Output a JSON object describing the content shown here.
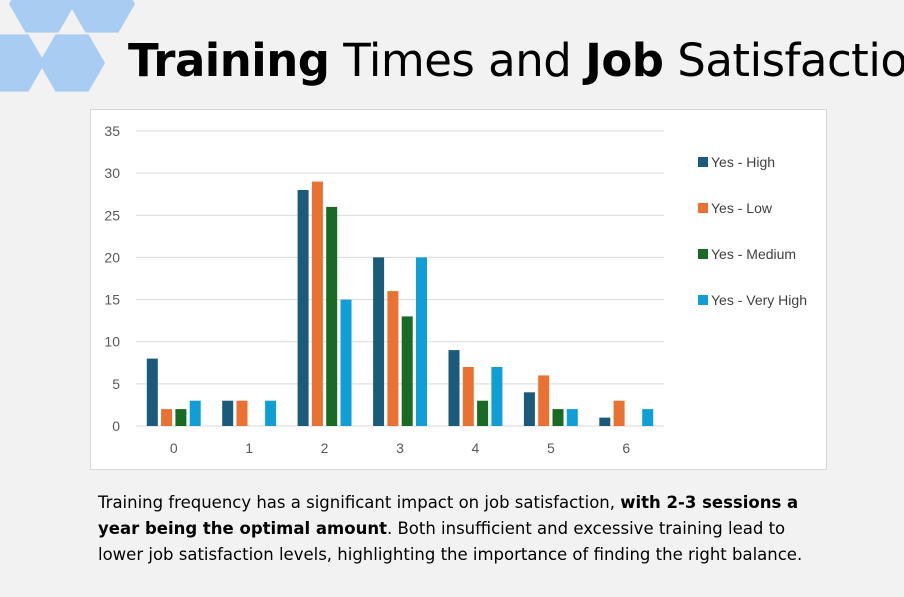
{
  "header": {
    "title_bold1": "Training",
    "title_mid": " Times and ",
    "title_bold2": "Job",
    "title_end": " Satisfaction"
  },
  "caption": {
    "part1": "Training frequency has a significant impact on job satisfaction, ",
    "bold": "with 2-3 sessions a year being the optimal amount",
    "part2": ". Both insufficient and excessive training lead to lower job satisfaction levels, highlighting the importance of finding the right balance."
  },
  "colors": {
    "hexagon": "#a9cdf2",
    "grid": "#d9d9d9"
  },
  "chart_data": {
    "type": "bar",
    "categories": [
      "0",
      "1",
      "2",
      "3",
      "4",
      "5",
      "6"
    ],
    "series": [
      {
        "name": "Yes - High",
        "color": "#1a5a7a",
        "values": [
          8,
          3,
          28,
          20,
          9,
          4,
          1
        ]
      },
      {
        "name": "Yes - Low",
        "color": "#e97132",
        "values": [
          2,
          3,
          29,
          16,
          7,
          6,
          3
        ]
      },
      {
        "name": "Yes - Medium",
        "color": "#196b24",
        "values": [
          2,
          0,
          26,
          13,
          3,
          2,
          0
        ]
      },
      {
        "name": "Yes - Very High",
        "color": "#0f9ed5",
        "values": [
          3,
          3,
          15,
          20,
          7,
          2,
          2
        ]
      }
    ],
    "ylim": [
      0,
      35
    ],
    "yticks": [
      0,
      5,
      10,
      15,
      20,
      25,
      30,
      35
    ],
    "grid": true,
    "legend": "right"
  }
}
